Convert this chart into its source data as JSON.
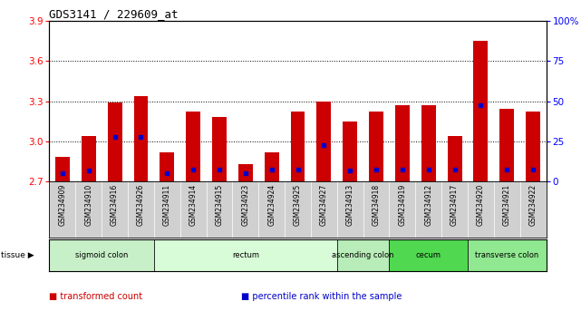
{
  "title": "GDS3141 / 229609_at",
  "samples": [
    "GSM234909",
    "GSM234910",
    "GSM234916",
    "GSM234926",
    "GSM234911",
    "GSM234914",
    "GSM234915",
    "GSM234923",
    "GSM234924",
    "GSM234925",
    "GSM234927",
    "GSM234913",
    "GSM234918",
    "GSM234919",
    "GSM234912",
    "GSM234917",
    "GSM234920",
    "GSM234921",
    "GSM234922"
  ],
  "bar_heights": [
    2.88,
    3.04,
    3.29,
    3.34,
    2.92,
    3.22,
    3.18,
    2.83,
    2.92,
    3.22,
    3.3,
    3.15,
    3.22,
    3.27,
    3.27,
    3.04,
    3.75,
    3.24,
    3.22
  ],
  "blue_values": [
    2.76,
    2.78,
    3.03,
    3.03,
    2.76,
    2.79,
    2.79,
    2.76,
    2.79,
    2.79,
    2.97,
    2.78,
    2.79,
    2.79,
    2.79,
    2.79,
    3.27,
    2.79,
    2.79
  ],
  "ymin": 2.7,
  "ymax": 3.9,
  "yticks": [
    2.7,
    3.0,
    3.3,
    3.6,
    3.9
  ],
  "right_yticks": [
    0,
    25,
    50,
    75,
    100
  ],
  "gridlines": [
    3.0,
    3.3,
    3.6
  ],
  "tissue_groups": [
    {
      "label": "sigmoid colon",
      "start": 0,
      "end": 4,
      "color": "#c8f0c8"
    },
    {
      "label": "rectum",
      "start": 4,
      "end": 11,
      "color": "#d8fcd8"
    },
    {
      "label": "ascending colon",
      "start": 11,
      "end": 13,
      "color": "#b8ecb8"
    },
    {
      "label": "cecum",
      "start": 13,
      "end": 16,
      "color": "#50d850"
    },
    {
      "label": "transverse colon",
      "start": 16,
      "end": 19,
      "color": "#90e890"
    }
  ],
  "bar_color": "#cc0000",
  "blue_color": "#0000cc",
  "bar_width": 0.55,
  "label_bg_color": "#d0d0d0",
  "tissue_arrow_label": "tissue",
  "legend_items": [
    {
      "color": "#cc0000",
      "label": "transformed count"
    },
    {
      "color": "#0000cc",
      "label": "percentile rank within the sample"
    }
  ]
}
